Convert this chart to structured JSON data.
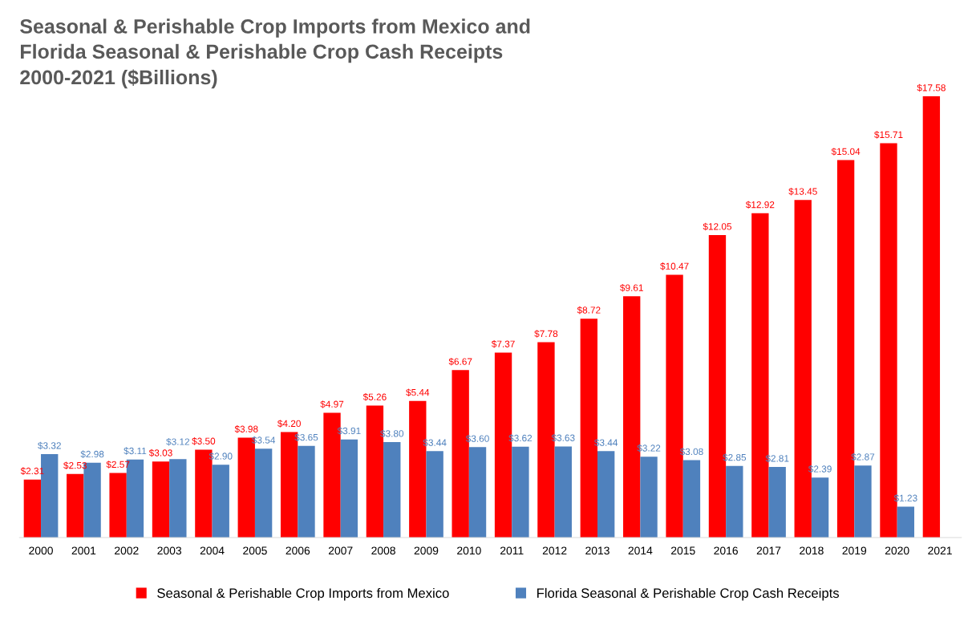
{
  "chart_data": {
    "type": "bar",
    "title": "Seasonal & Perishable Crop Imports from Mexico and\nFlorida Seasonal & Perishable Crop Cash Receipts\n2000-2021 ($Billions)",
    "categories": [
      "2000",
      "2001",
      "2002",
      "2003",
      "2004",
      "2005",
      "2006",
      "2007",
      "2008",
      "2009",
      "2010",
      "2011",
      "2012",
      "2013",
      "2014",
      "2015",
      "2016",
      "2017",
      "2018",
      "2019",
      "2020",
      "2021"
    ],
    "series": [
      {
        "name": "Seasonal & Perishable Crop Imports from Mexico",
        "color": "#ff0000",
        "values": [
          2.31,
          2.53,
          2.57,
          3.03,
          3.5,
          3.98,
          4.2,
          4.97,
          5.26,
          5.44,
          6.67,
          7.37,
          7.78,
          8.72,
          9.61,
          10.47,
          12.05,
          12.92,
          13.45,
          15.04,
          15.71,
          17.58
        ],
        "value_labels": [
          "$2.31",
          "$2.53",
          "$2.57",
          "$3.03",
          "$3.50",
          "$3.98",
          "$4.20",
          "$4.97",
          "$5.26",
          "$5.44",
          "$6.67",
          "$7.37",
          "$7.78",
          "$8.72",
          "$9.61",
          "$10.47",
          "$12.05",
          "$12.92",
          "$13.45",
          "$15.04",
          "$15.71",
          "$17.58"
        ]
      },
      {
        "name": "Florida Seasonal & Perishable Crop Cash Receipts",
        "color": "#4f81bd",
        "values": [
          3.32,
          2.98,
          3.11,
          3.12,
          2.9,
          3.54,
          3.65,
          3.91,
          3.8,
          3.44,
          3.6,
          3.62,
          3.63,
          3.44,
          3.22,
          3.08,
          2.85,
          2.81,
          2.39,
          2.87,
          1.23,
          null
        ],
        "value_labels": [
          "$3.32",
          "$2.98",
          "$3.11",
          "$3.12",
          "$2.90",
          "$3.54",
          "$3.65",
          "$3.91",
          "$3.80",
          "$3.44",
          "$3.60",
          "$3.62",
          "$3.63",
          "$3.44",
          "$3.22",
          "$3.08",
          "$2.85",
          "$2.81",
          "$2.39",
          "$2.87",
          "$1.23",
          null
        ]
      }
    ],
    "legend": "bottom",
    "grid": false
  }
}
